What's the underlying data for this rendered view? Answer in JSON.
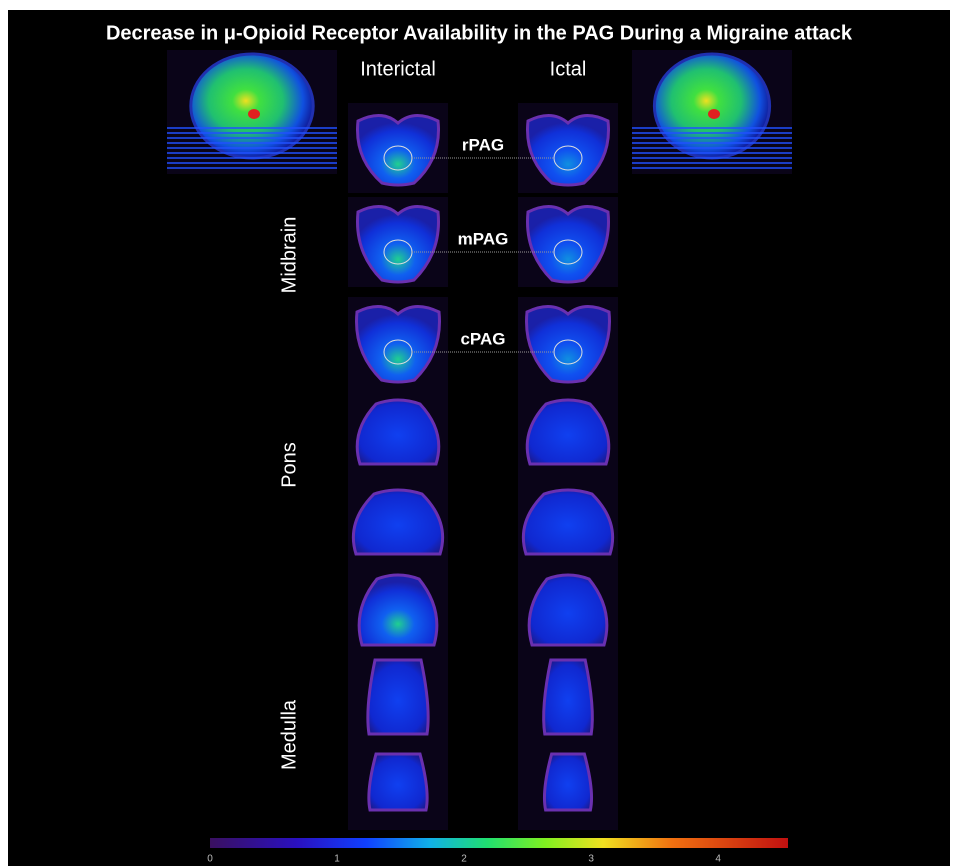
{
  "title": "Decrease in μ-Opioid  Receptor Availability in the PAG During a Migraine attack",
  "columns": [
    "Interictal",
    "Ictal"
  ],
  "regions": [
    "Midbrain",
    "Pons",
    "Medulla"
  ],
  "rois": [
    "rPAG",
    "mPAG",
    "cPAG"
  ],
  "colorbar": {
    "lim": [
      0,
      4.55
    ],
    "ticks": [
      0,
      1,
      2,
      3,
      4
    ]
  }
}
